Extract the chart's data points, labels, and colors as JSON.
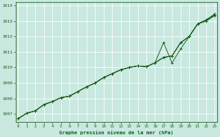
{
  "title": "Graphe pression niveau de la mer (hPa)",
  "bg_color": "#c8e8e0",
  "grid_color": "#ffffff",
  "line_color": "#1a5c1a",
  "xlim": [
    -0.3,
    23.3
  ],
  "ylim": [
    1006.5,
    1014.2
  ],
  "yticks": [
    1007,
    1008,
    1009,
    1010,
    1011,
    1012,
    1013,
    1014
  ],
  "xticks": [
    0,
    1,
    2,
    3,
    4,
    5,
    6,
    7,
    8,
    9,
    10,
    11,
    12,
    13,
    14,
    15,
    16,
    17,
    18,
    19,
    20,
    21,
    22,
    23
  ],
  "series1": [
    1006.7,
    1007.05,
    1007.2,
    1007.6,
    1007.8,
    1008.05,
    1008.15,
    1008.45,
    1008.75,
    1009.0,
    1009.35,
    1009.6,
    1009.85,
    1010.0,
    1010.1,
    1010.05,
    1010.3,
    1011.6,
    1010.3,
    1011.2,
    1012.0,
    1012.8,
    1013.0,
    1013.35
  ],
  "series2": [
    1006.7,
    1007.05,
    1007.2,
    1007.6,
    1007.8,
    1008.05,
    1008.15,
    1008.45,
    1008.75,
    1009.0,
    1009.35,
    1009.6,
    1009.85,
    1010.0,
    1010.1,
    1010.05,
    1010.3,
    1010.65,
    1010.75,
    1011.6,
    1012.0,
    1012.82,
    1013.05,
    1013.4
  ],
  "series3": [
    1006.7,
    1007.05,
    1007.2,
    1007.6,
    1007.8,
    1008.05,
    1008.15,
    1008.45,
    1008.75,
    1009.0,
    1009.35,
    1009.6,
    1009.85,
    1010.0,
    1010.1,
    1010.05,
    1010.3,
    1010.65,
    1010.75,
    1011.6,
    1012.0,
    1012.82,
    1013.05,
    1013.4
  ],
  "series4": [
    1006.7,
    1007.05,
    1007.2,
    1007.6,
    1007.8,
    1008.05,
    1008.15,
    1008.45,
    1008.75,
    1009.0,
    1009.35,
    1009.6,
    1009.85,
    1010.0,
    1010.1,
    1010.05,
    1010.3,
    1010.65,
    1010.75,
    1011.6,
    1012.0,
    1012.82,
    1013.08,
    1013.45
  ]
}
